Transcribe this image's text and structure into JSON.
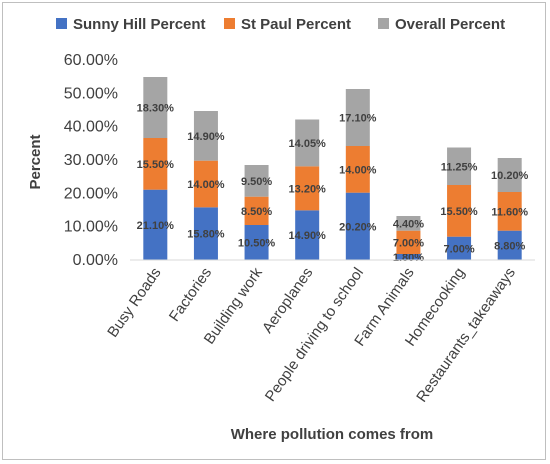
{
  "chart_data": {
    "type": "bar",
    "stacked": true,
    "categories": [
      "Busy Roads",
      "Factories",
      "Building work",
      "Aeroplanes",
      "People driving to school",
      "Farm Animals",
      "Homecooking",
      "Restaurants_takeaways"
    ],
    "series": [
      {
        "name": "Sunny Hill Percent",
        "color": "#4472c4",
        "values": [
          0.211,
          0.158,
          0.105,
          0.149,
          0.202,
          0.018,
          0.07,
          0.088
        ],
        "labels": [
          "21.10%",
          "15.80%",
          "10.50%",
          "14.90%",
          "20.20%",
          "1.80%",
          "7.00%",
          "8.80%"
        ]
      },
      {
        "name": "St Paul Percent",
        "color": "#ed7d31",
        "values": [
          0.155,
          0.14,
          0.085,
          0.132,
          0.14,
          0.07,
          0.155,
          0.116
        ],
        "labels": [
          "15.50%",
          "14.00%",
          "8.50%",
          "13.20%",
          "14.00%",
          "7.00%",
          "15.50%",
          "11.60%"
        ]
      },
      {
        "name": "Overall Percent",
        "color": "#a5a5a5",
        "values": [
          0.183,
          0.149,
          0.095,
          0.1405,
          0.171,
          0.044,
          0.1125,
          0.102
        ],
        "labels": [
          "18.30%",
          "14.90%",
          "9.50%",
          "14.05%",
          "17.10%",
          "4.40%",
          "11.25%",
          "10.20%"
        ]
      }
    ],
    "xlabel": "Where pollution comes from",
    "ylabel": "Percent",
    "ylim": [
      0,
      0.6
    ],
    "yticks": [
      0,
      0.1,
      0.2,
      0.3,
      0.4,
      0.5,
      0.6
    ],
    "ytick_labels": [
      "0.00%",
      "10.00%",
      "20.00%",
      "30.00%",
      "40.00%",
      "50.00%",
      "60.00%"
    ],
    "legend_position": "top",
    "grid": false
  }
}
